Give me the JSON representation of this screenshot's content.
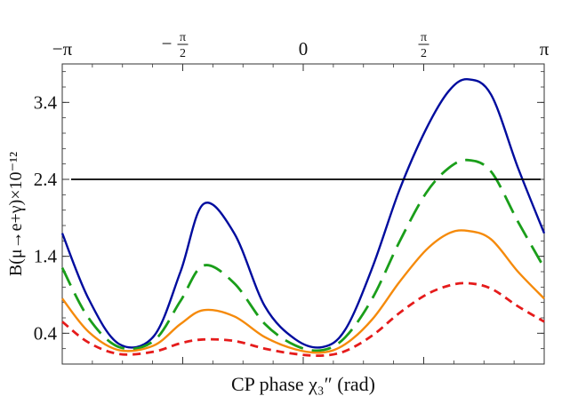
{
  "chart_data": {
    "type": "line",
    "title": "",
    "xlabel": "CP phase χ₃″ (rad)",
    "ylabel": "B(μ→e+γ)×10⁻¹²",
    "xlim": [
      -3.14159,
      3.14159
    ],
    "ylim": [
      0.0,
      3.9
    ],
    "yticks": [
      0.4,
      1.4,
      2.4,
      3.4
    ],
    "ytick_labels": [
      "0.4",
      "1.4",
      "2.4",
      "3.4"
    ],
    "xticks_top": [
      {
        "value": -3.14159,
        "label": "−π"
      },
      {
        "value": -1.5708,
        "sign": "−",
        "num": "π",
        "den": "2"
      },
      {
        "value": 0,
        "label": "0"
      },
      {
        "value": 1.5708,
        "num": "π",
        "den": "2"
      },
      {
        "value": 3.14159,
        "label": "π"
      }
    ],
    "grid": false,
    "series": [
      {
        "name": "blue-solid",
        "color": "#000c9e",
        "dash": "solid",
        "x": [
          -3.14159,
          -2.8,
          -2.4,
          -1.95,
          -1.6,
          -1.3,
          -0.9,
          -0.5,
          -0.1,
          0.25,
          0.55,
          0.9,
          1.25,
          1.6,
          1.9,
          2.15,
          2.45,
          2.8,
          3.14159
        ],
        "values": [
          1.7,
          0.85,
          0.26,
          0.36,
          1.2,
          2.08,
          1.7,
          0.75,
          0.32,
          0.22,
          0.45,
          1.25,
          2.25,
          3.05,
          3.55,
          3.7,
          3.5,
          2.55,
          1.7
        ]
      },
      {
        "name": "green-dashed",
        "color": "#1a9e1a",
        "dash": "long-dash",
        "x": [
          -3.14159,
          -2.8,
          -2.4,
          -1.95,
          -1.6,
          -1.3,
          -0.9,
          -0.5,
          -0.1,
          0.25,
          0.55,
          0.9,
          1.25,
          1.6,
          1.9,
          2.15,
          2.45,
          2.8,
          3.14159
        ],
        "values": [
          1.25,
          0.6,
          0.22,
          0.3,
          0.82,
          1.28,
          1.05,
          0.52,
          0.24,
          0.18,
          0.35,
          0.85,
          1.58,
          2.22,
          2.55,
          2.65,
          2.5,
          1.85,
          1.25
        ]
      },
      {
        "name": "orange-solid",
        "color": "#f58a0b",
        "dash": "solid",
        "x": [
          -3.14159,
          -2.8,
          -2.4,
          -1.95,
          -1.6,
          -1.3,
          -0.9,
          -0.5,
          -0.1,
          0.25,
          0.55,
          0.9,
          1.25,
          1.6,
          1.9,
          2.15,
          2.45,
          2.8,
          3.14159
        ],
        "values": [
          0.85,
          0.42,
          0.18,
          0.24,
          0.52,
          0.7,
          0.62,
          0.35,
          0.19,
          0.15,
          0.26,
          0.58,
          1.06,
          1.48,
          1.7,
          1.73,
          1.62,
          1.2,
          0.85
        ]
      },
      {
        "name": "red-dotted",
        "color": "#e51b1b",
        "dash": "short-dash",
        "x": [
          -3.14159,
          -2.8,
          -2.4,
          -1.95,
          -1.6,
          -1.3,
          -0.9,
          -0.5,
          -0.1,
          0.25,
          0.55,
          0.9,
          1.25,
          1.6,
          1.9,
          2.15,
          2.45,
          2.8,
          3.14159
        ],
        "values": [
          0.55,
          0.28,
          0.13,
          0.16,
          0.27,
          0.32,
          0.3,
          0.2,
          0.13,
          0.11,
          0.17,
          0.37,
          0.66,
          0.9,
          1.02,
          1.05,
          0.98,
          0.75,
          0.55
        ]
      }
    ],
    "reference_line": {
      "name": "experimental-limit",
      "color": "#000000",
      "y": 2.4
    }
  }
}
